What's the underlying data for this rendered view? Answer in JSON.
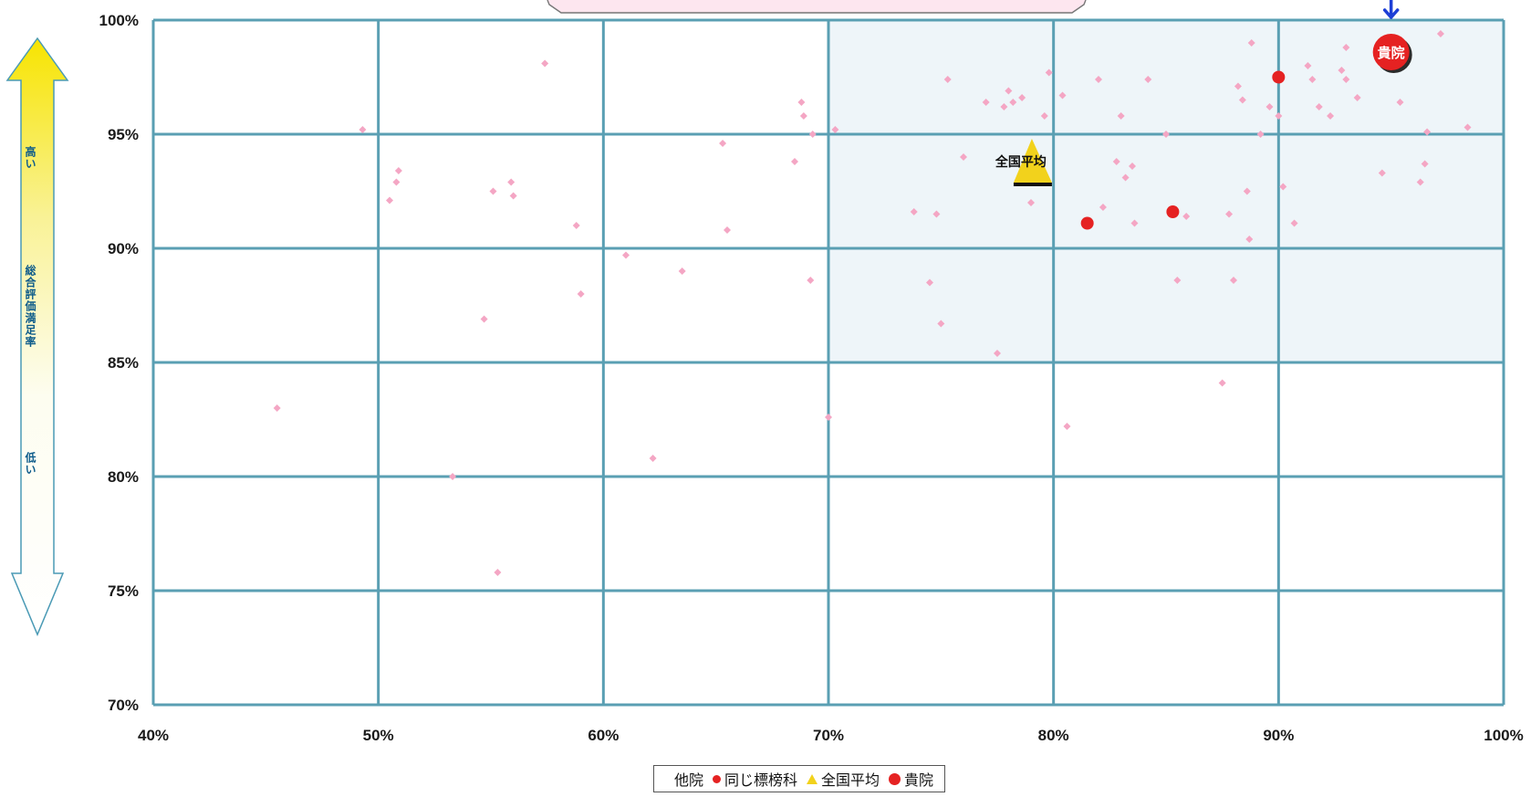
{
  "chart_data": {
    "type": "scatter",
    "x_axis": {
      "range": [
        40,
        100
      ],
      "ticks": [
        "40%",
        "50%",
        "60%",
        "70%",
        "80%",
        "90%",
        "100%"
      ],
      "tick_values": [
        40,
        50,
        60,
        70,
        80,
        90,
        100
      ]
    },
    "y_axis": {
      "range": [
        70,
        100
      ],
      "ticks": [
        "70%",
        "75%",
        "80%",
        "85%",
        "90%",
        "95%",
        "100%"
      ],
      "tick_values": [
        70,
        75,
        80,
        85,
        90,
        95,
        100
      ]
    },
    "grid": true,
    "side_arrow": {
      "top_label": "高い",
      "middle_label": "総合評価満足率",
      "bottom_label": "低い"
    },
    "legend": {
      "placement": "bottom-center",
      "entries": [
        {
          "label": "他院",
          "symbol": "none"
        },
        {
          "label": "同じ標榜科",
          "symbol": "small-red-dot"
        },
        {
          "label": "全国平均",
          "symbol": "yellow-triangle"
        },
        {
          "label": "貴院",
          "symbol": "large-red-dot"
        }
      ]
    },
    "colors": {
      "others": "#f4a6c4",
      "same_specialty": "#e52222",
      "national_avg": "#f2d21c",
      "own_clinic": "#e52222",
      "grid": "#5a9fb3",
      "arrow_top": "#f7e400",
      "marker_pointer": "#1d3fd6"
    },
    "series": [
      {
        "name": "他院",
        "points": [
          [
            45.5,
            83
          ],
          [
            49.3,
            95.2
          ],
          [
            50.5,
            92.1
          ],
          [
            50.8,
            92.9
          ],
          [
            50.9,
            93.4
          ],
          [
            53.3,
            80
          ],
          [
            54.7,
            86.9
          ],
          [
            55.1,
            92.5
          ],
          [
            55.3,
            75.8
          ],
          [
            55.9,
            92.9
          ],
          [
            56.0,
            92.3
          ],
          [
            57.4,
            98.1
          ],
          [
            58.8,
            91
          ],
          [
            59.0,
            88
          ],
          [
            61.0,
            89.7
          ],
          [
            62.2,
            80.8
          ],
          [
            63.5,
            89
          ],
          [
            65.3,
            94.6
          ],
          [
            65.5,
            90.8
          ],
          [
            68.5,
            93.8
          ],
          [
            68.8,
            96.4
          ],
          [
            68.9,
            95.8
          ],
          [
            69.2,
            88.6
          ],
          [
            69.3,
            95
          ],
          [
            70.0,
            82.6
          ],
          [
            70.3,
            95.2
          ],
          [
            73.8,
            91.6
          ],
          [
            74.5,
            88.5
          ],
          [
            74.8,
            91.5
          ],
          [
            75.0,
            86.7
          ],
          [
            75.3,
            97.4
          ],
          [
            76.0,
            94
          ],
          [
            77.0,
            96.4
          ],
          [
            77.5,
            85.4
          ],
          [
            77.8,
            96.2
          ],
          [
            78.0,
            96.9
          ],
          [
            78.2,
            96.4
          ],
          [
            78.6,
            96.6
          ],
          [
            79.0,
            92
          ],
          [
            79.6,
            95.8
          ],
          [
            79.8,
            97.7
          ],
          [
            80.4,
            96.7
          ],
          [
            80.6,
            82.2
          ],
          [
            82.0,
            97.4
          ],
          [
            82.2,
            91.8
          ],
          [
            82.8,
            93.8
          ],
          [
            83.0,
            95.8
          ],
          [
            83.2,
            93.1
          ],
          [
            83.5,
            93.6
          ],
          [
            83.6,
            91.1
          ],
          [
            84.2,
            97.4
          ],
          [
            85.0,
            95
          ],
          [
            85.5,
            88.6
          ],
          [
            85.9,
            91.4
          ],
          [
            87.5,
            84.1
          ],
          [
            87.8,
            91.5
          ],
          [
            88.0,
            88.6
          ],
          [
            88.2,
            97.1
          ],
          [
            88.4,
            96.5
          ],
          [
            88.6,
            92.5
          ],
          [
            88.7,
            90.4
          ],
          [
            88.8,
            99
          ],
          [
            89.2,
            95
          ],
          [
            89.6,
            96.2
          ],
          [
            90.0,
            95.8
          ],
          [
            90.2,
            92.7
          ],
          [
            90.7,
            91.1
          ],
          [
            91.3,
            98
          ],
          [
            91.5,
            97.4
          ],
          [
            91.8,
            96.2
          ],
          [
            92.3,
            95.8
          ],
          [
            92.8,
            97.8
          ],
          [
            93.0,
            98.8
          ],
          [
            93.0,
            97.4
          ],
          [
            93.5,
            96.6
          ],
          [
            94.6,
            93.3
          ],
          [
            95.3,
            98.2
          ],
          [
            95.4,
            96.4
          ],
          [
            96.3,
            92.9
          ],
          [
            96.5,
            93.7
          ],
          [
            96.6,
            95.1
          ],
          [
            97.2,
            99.4
          ],
          [
            98.4,
            95.3
          ]
        ]
      },
      {
        "name": "同じ標榜科",
        "points": [
          [
            81.5,
            91.1
          ],
          [
            85.3,
            91.6
          ],
          [
            90.0,
            97.5
          ]
        ]
      },
      {
        "name": "全国平均",
        "points": [
          [
            79.2,
            93.2
          ]
        ],
        "label": "全国平均"
      },
      {
        "name": "貴院",
        "points": [
          [
            95.0,
            98.6
          ]
        ],
        "label": "貴院"
      }
    ]
  }
}
